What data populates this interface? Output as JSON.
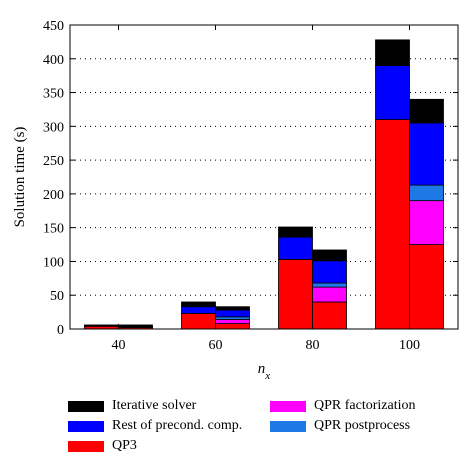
{
  "chart_data": {
    "type": "bar",
    "stacked": true,
    "xlabel": "n",
    "xlabel_sub": "x",
    "ylabel": "Solution time (s)",
    "ylim": [
      0,
      450
    ],
    "yticks": [
      "0",
      "50",
      "100",
      "150",
      "200",
      "250",
      "300",
      "350",
      "400",
      "450"
    ],
    "grid": "dotted horizontal",
    "legend_position": "bottom",
    "categories": [
      "40",
      "60",
      "80",
      "100"
    ],
    "bars": [
      {
        "category": "40",
        "side": "left",
        "segments": {
          "QP3": 4,
          "QPR factorization": 0,
          "QPR postprocess": 0,
          "Rest of precond. comp.": 1,
          "Iterative solver": 1
        }
      },
      {
        "category": "40",
        "side": "right",
        "segments": {
          "QP3": 2,
          "QPR factorization": 0,
          "QPR postprocess": 0,
          "Rest of precond. comp.": 1,
          "Iterative solver": 3
        }
      },
      {
        "category": "60",
        "side": "left",
        "segments": {
          "QP3": 23,
          "QPR factorization": 0,
          "QPR postprocess": 0,
          "Rest of precond. comp.": 10,
          "Iterative solver": 7
        }
      },
      {
        "category": "60",
        "side": "right",
        "segments": {
          "QP3": 8,
          "QPR factorization": 6,
          "QPR postprocess": 4,
          "Rest of precond. comp.": 10,
          "Iterative solver": 5
        }
      },
      {
        "category": "80",
        "side": "left",
        "segments": {
          "QP3": 103,
          "QPR factorization": 0,
          "QPR postprocess": 0,
          "Rest of precond. comp.": 33,
          "Iterative solver": 15
        }
      },
      {
        "category": "80",
        "side": "right",
        "segments": {
          "QP3": 40,
          "QPR factorization": 22,
          "QPR postprocess": 6,
          "Rest of precond. comp.": 33,
          "Iterative solver": 16
        }
      },
      {
        "category": "100",
        "side": "left",
        "segments": {
          "QP3": 310,
          "QPR factorization": 0,
          "QPR postprocess": 0,
          "Rest of precond. comp.": 80,
          "Iterative solver": 38
        }
      },
      {
        "category": "100",
        "side": "right",
        "segments": {
          "QP3": 125,
          "QPR factorization": 65,
          "QPR postprocess": 23,
          "Rest of precond. comp.": 92,
          "Iterative solver": 35
        }
      }
    ],
    "stack_order": [
      "QP3",
      "QPR factorization",
      "QPR postprocess",
      "Rest of precond. comp.",
      "Iterative solver"
    ],
    "series": [
      {
        "name": "Iterative solver",
        "color": "#000000"
      },
      {
        "name": "Rest of precond. comp.",
        "color": "#0000ff"
      },
      {
        "name": "QP3",
        "color": "#ff0000"
      },
      {
        "name": "QPR factorization",
        "color": "#ff00ff"
      },
      {
        "name": "QPR postprocess",
        "color": "#1e78e6"
      }
    ]
  }
}
